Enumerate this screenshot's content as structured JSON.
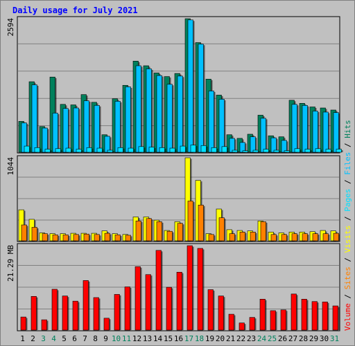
{
  "chart_data": {
    "type": "bar",
    "title": "Daily usage for July 2021",
    "days": [
      "1",
      "2",
      "3",
      "4",
      "5",
      "6",
      "7",
      "8",
      "9",
      "10",
      "11",
      "12",
      "13",
      "14",
      "15",
      "16",
      "17",
      "18",
      "19",
      "20",
      "21",
      "22",
      "23",
      "24",
      "25",
      "26",
      "27",
      "28",
      "29",
      "30",
      "31"
    ],
    "weekend_days": [
      "3",
      "4",
      "10",
      "11",
      "17",
      "18",
      "24",
      "25",
      "31"
    ],
    "legend": {
      "hits": "Hits",
      "files": "Files",
      "pages": "Pages",
      "visits": "Visits",
      "sites": "Sites",
      "volume": "Volume",
      "separator": " / "
    },
    "panels": {
      "hits_files_pages": {
        "max_label": "2594",
        "ymax": 2594,
        "series": [
          {
            "name": "Hits",
            "color": "#00805c",
            "values": [
              600,
              1370,
              500,
              1460,
              930,
              920,
              1120,
              970,
              340,
              1040,
              1300,
              1770,
              1680,
              1540,
              1470,
              1530,
              2594,
              2130,
              1420,
              1110,
              340,
              270,
              350,
              720,
              320,
              300,
              1010,
              950,
              880,
              860,
              820
            ]
          },
          {
            "name": "Files",
            "color": "#00c0ff",
            "values": [
              570,
              1310,
              470,
              760,
              850,
              860,
              1000,
              910,
              310,
              990,
              1270,
              1680,
              1620,
              1490,
              1320,
              1480,
              2570,
              2100,
              1190,
              1030,
              270,
              190,
              300,
              660,
              280,
              230,
              930,
              910,
              800,
              780,
              770
            ]
          },
          {
            "name": "Pages",
            "color": "#00e0ff",
            "values": [
              120,
              90,
              60,
              70,
              80,
              60,
              90,
              80,
              40,
              90,
              80,
              110,
              100,
              90,
              80,
              120,
              140,
              130,
              90,
              110,
              40,
              30,
              40,
              60,
              40,
              30,
              70,
              60,
              70,
              60,
              60
            ]
          }
        ]
      },
      "visits_sites": {
        "max_label": "1044",
        "ymax": 1044,
        "series": [
          {
            "name": "Visits",
            "color": "#ffff00",
            "values": [
              390,
              270,
              100,
              90,
              90,
              95,
              95,
              95,
              125,
              90,
              80,
              300,
              300,
              260,
              130,
              240,
              1044,
              760,
              90,
              400,
              140,
              130,
              125,
              250,
              110,
              100,
              110,
              110,
              115,
              130,
              125
            ]
          },
          {
            "name": "Sites",
            "color": "#ff8000",
            "values": [
              200,
              170,
              90,
              75,
              75,
              80,
              85,
              80,
              95,
              75,
              70,
              250,
              280,
              240,
              120,
              220,
              500,
              450,
              80,
              290,
              90,
              110,
              110,
              240,
              80,
              80,
              90,
              90,
              90,
              90,
              95
            ]
          }
        ]
      },
      "volume": {
        "max_label": "21.29 MB",
        "ymax": 21.29,
        "series": [
          {
            "name": "Volume",
            "color": "#ff0000",
            "values": [
              3.3,
              8.5,
              2.6,
              10.3,
              8.6,
              7.3,
              12.5,
              8.2,
              3.0,
              9.0,
              10.9,
              16.0,
              14.0,
              20.1,
              10.8,
              14.6,
              21.29,
              20.6,
              10.2,
              8.6,
              4.0,
              1.8,
              3.2,
              7.8,
              4.9,
              5.1,
              9.1,
              7.8,
              7.2,
              7.1,
              6.1
            ]
          }
        ]
      }
    }
  }
}
